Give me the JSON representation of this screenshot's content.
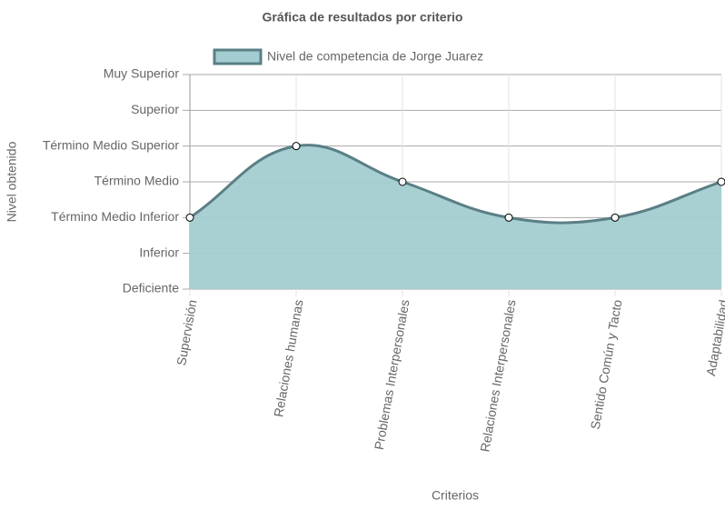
{
  "chart_data": {
    "type": "line",
    "title": "Gráfica de resultados por criterio",
    "x_label": "Criterios",
    "y_label": "Nivel obtenido",
    "categories": [
      "Supervisión",
      "Relaciones humanas",
      "Problemas Interpersonales",
      "Relaciones Interpersonales",
      "Sentido Común y Tacto",
      "Adaptabilidad"
    ],
    "series": [
      {
        "name": "Nivel de competencia de Jorge Juarez",
        "color": "#5a7f85",
        "fill": "#a3cdd0",
        "values": [
          2,
          4,
          3,
          2,
          2,
          3
        ]
      }
    ],
    "ylim": [
      0,
      6
    ],
    "yticks": [
      {
        "value": 0,
        "label": "Deficiente"
      },
      {
        "value": 1,
        "label": "Inferior"
      },
      {
        "value": 2,
        "label": "Término Medio Inferior"
      },
      {
        "value": 3,
        "label": "Término Medio"
      },
      {
        "value": 4,
        "label": "Término Medio Superior"
      },
      {
        "value": 5,
        "label": "Superior"
      },
      {
        "value": 6,
        "label": "Muy Superior"
      }
    ],
    "grid": true,
    "legend": "top"
  }
}
